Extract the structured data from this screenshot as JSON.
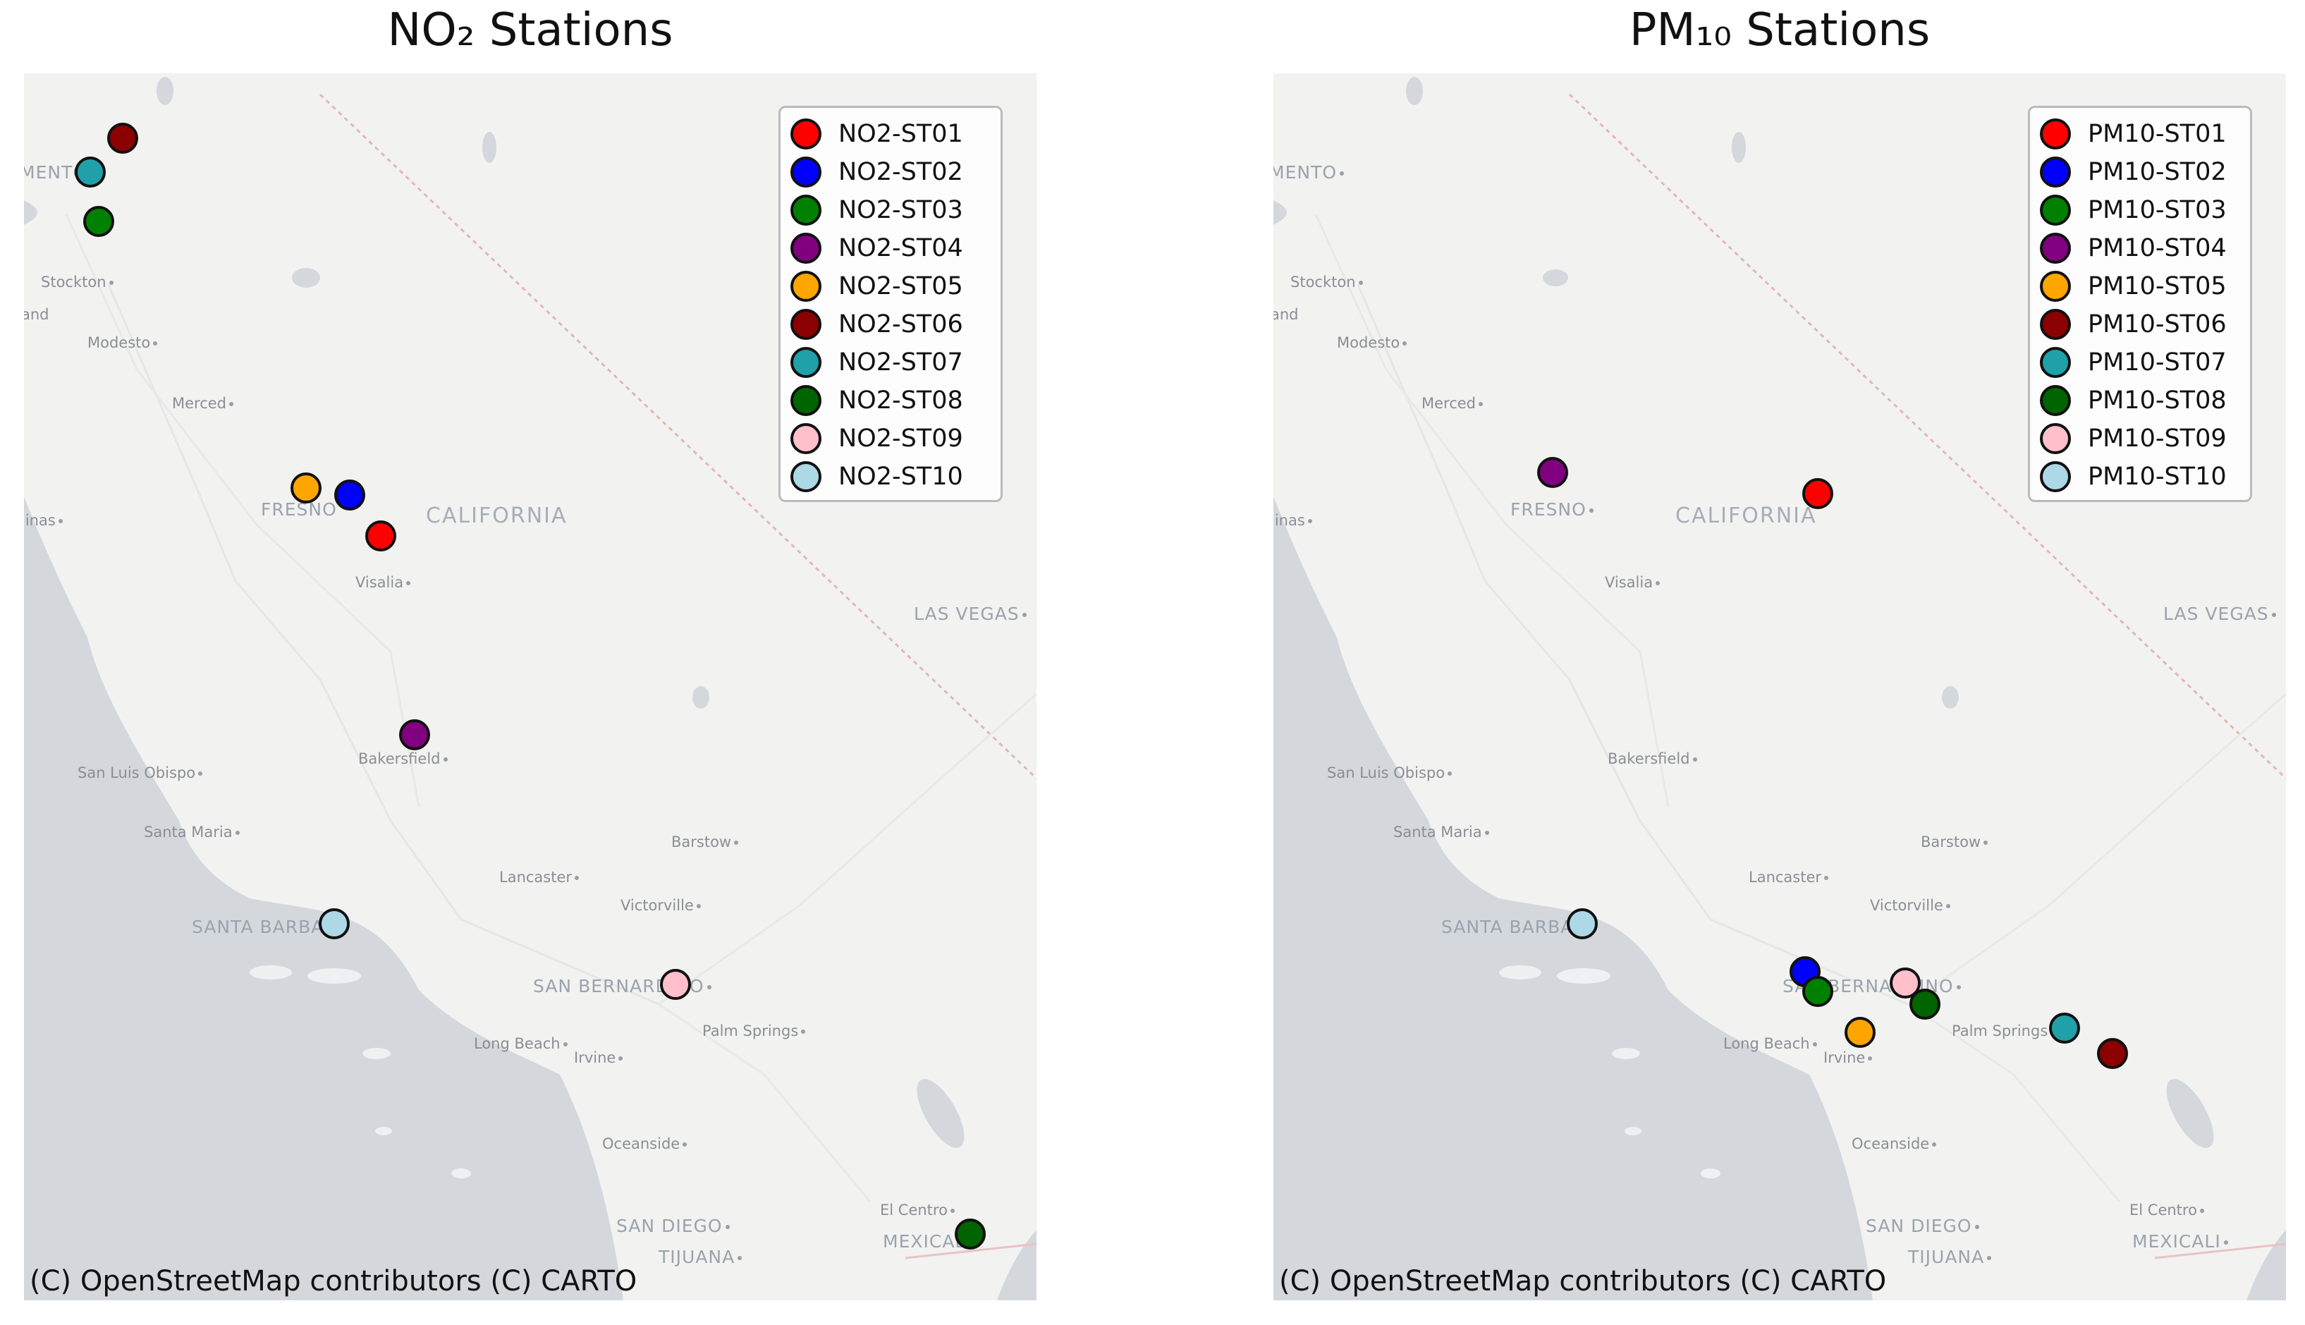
{
  "panels": [
    {
      "title": "NO₂ Stations",
      "attribution": "(C) OpenStreetMap contributors (C) CARTO",
      "stations": [
        {
          "name": "NO2-ST01",
          "color": "#ff0000"
        },
        {
          "name": "NO2-ST02",
          "color": "#0000ff"
        },
        {
          "name": "NO2-ST03",
          "color": "#008000"
        },
        {
          "name": "NO2-ST04",
          "color": "#800080"
        },
        {
          "name": "NO2-ST05",
          "color": "#ffa500"
        },
        {
          "name": "NO2-ST06",
          "color": "#8b0000"
        },
        {
          "name": "NO2-ST07",
          "color": "#20a0a8"
        },
        {
          "name": "NO2-ST08",
          "color": "#006400"
        },
        {
          "name": "NO2-ST09",
          "color": "#ffc0cb"
        },
        {
          "name": "NO2-ST10",
          "color": "#add8e6"
        }
      ]
    },
    {
      "title": "PM₁₀ Stations",
      "attribution": "(C) OpenStreetMap contributors (C) CARTO",
      "stations": [
        {
          "name": "PM10-ST01",
          "color": "#ff0000"
        },
        {
          "name": "PM10-ST02",
          "color": "#0000ff"
        },
        {
          "name": "PM10-ST03",
          "color": "#008000"
        },
        {
          "name": "PM10-ST04",
          "color": "#800080"
        },
        {
          "name": "PM10-ST05",
          "color": "#ffa500"
        },
        {
          "name": "PM10-ST06",
          "color": "#8b0000"
        },
        {
          "name": "PM10-ST07",
          "color": "#20a0a8"
        },
        {
          "name": "PM10-ST08",
          "color": "#006400"
        },
        {
          "name": "PM10-ST09",
          "color": "#ffc0cb"
        },
        {
          "name": "PM10-ST10",
          "color": "#add8e6"
        }
      ]
    }
  ],
  "place_labels": {
    "sacramento": "MENTO",
    "stockton": "Stockton",
    "oakland": "and",
    "modesto": "Modesto",
    "merced": "Merced",
    "fresno": "FRESNO",
    "california": "CALIFORNIA",
    "salinas": "linas",
    "visalia": "Visalia",
    "las_vegas": "LAS VEGAS",
    "bakersfield": "Bakersfield",
    "san_luis_obispo": "San Luis Obispo",
    "santa_maria": "Santa Maria",
    "barstow": "Barstow",
    "lancaster": "Lancaster",
    "victorville": "Victorville",
    "santa_barbara": "SANTA BARBA",
    "san_bernardino": "SAN BERNARDINO",
    "long_beach": "Long Beach",
    "irvine": "Irvine",
    "palm_springs": "Palm Springs",
    "oceanside": "Oceanside",
    "el_centro": "El Centro",
    "san_diego": "SAN DIEGO",
    "mexicali": "MEXICALI",
    "tijuana": "TIJUANA"
  }
}
